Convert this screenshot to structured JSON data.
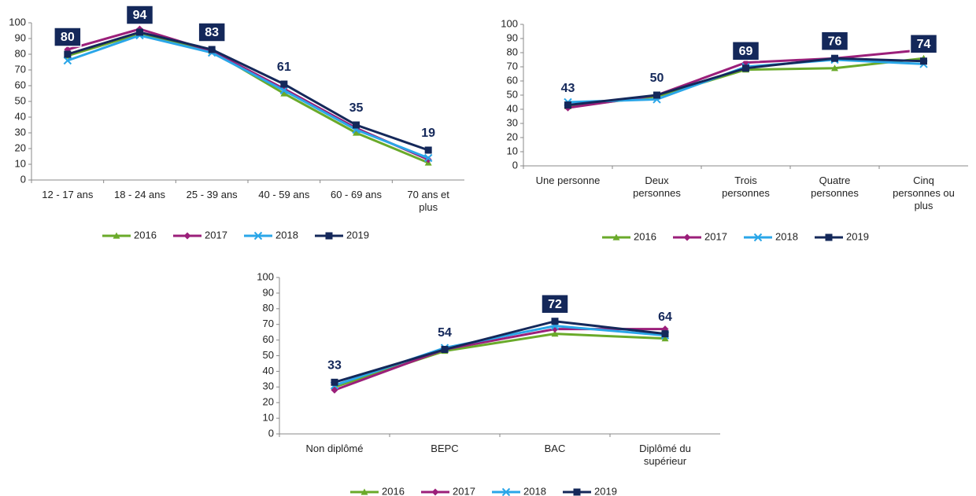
{
  "chart_data": [
    {
      "type": "line",
      "categories": [
        "12 - 17 ans",
        "18 - 24 ans",
        "25 - 39 ans",
        "40 - 59 ans",
        "60 - 69 ans",
        "70 ans et plus"
      ],
      "series": [
        {
          "name": "2016",
          "color": "#6aaa2a",
          "marker": "triangle",
          "values": [
            79,
            93,
            82,
            55,
            30,
            11
          ]
        },
        {
          "name": "2017",
          "color": "#9b1f7a",
          "marker": "diamond",
          "values": [
            83,
            96,
            82,
            58,
            33,
            13
          ]
        },
        {
          "name": "2018",
          "color": "#2aa6e8",
          "marker": "x",
          "values": [
            76,
            92,
            81,
            57,
            32,
            14
          ]
        },
        {
          "name": "2019",
          "color": "#14285a",
          "marker": "square",
          "values": [
            80,
            94,
            83,
            61,
            35,
            19
          ],
          "data_labels": true,
          "labels_boxed": [
            true,
            true,
            true,
            false,
            false,
            false
          ]
        }
      ],
      "ylim": [
        0,
        100
      ],
      "yticks": [
        0,
        10,
        20,
        30,
        40,
        50,
        60,
        70,
        80,
        90,
        100
      ],
      "legend": "bottom"
    },
    {
      "type": "line",
      "categories": [
        "Une personne",
        "Deux personnes",
        "Trois personnes",
        "Quatre personnes",
        "Cinq personnes ou plus"
      ],
      "series": [
        {
          "name": "2016",
          "color": "#6aaa2a",
          "marker": "triangle",
          "values": [
            42,
            49,
            68,
            69,
            76
          ]
        },
        {
          "name": "2017",
          "color": "#9b1f7a",
          "marker": "diamond",
          "values": [
            41,
            50,
            73,
            76,
            82
          ]
        },
        {
          "name": "2018",
          "color": "#2aa6e8",
          "marker": "x",
          "values": [
            45,
            47,
            70,
            75,
            72
          ]
        },
        {
          "name": "2019",
          "color": "#14285a",
          "marker": "square",
          "values": [
            43,
            50,
            69,
            76,
            74
          ],
          "data_labels": true,
          "labels_boxed": [
            false,
            false,
            true,
            true,
            true
          ]
        }
      ],
      "ylim": [
        0,
        100
      ],
      "yticks": [
        0,
        10,
        20,
        30,
        40,
        50,
        60,
        70,
        80,
        90,
        100
      ],
      "legend": "bottom"
    },
    {
      "type": "line",
      "categories": [
        "Non diplômé",
        "BEPC",
        "BAC",
        "Diplômé du supérieur"
      ],
      "series": [
        {
          "name": "2016",
          "color": "#6aaa2a",
          "marker": "triangle",
          "values": [
            30,
            53,
            64,
            61
          ]
        },
        {
          "name": "2017",
          "color": "#9b1f7a",
          "marker": "diamond",
          "values": [
            28,
            54,
            67,
            67
          ]
        },
        {
          "name": "2018",
          "color": "#2aa6e8",
          "marker": "x",
          "values": [
            31,
            55,
            69,
            63
          ]
        },
        {
          "name": "2019",
          "color": "#14285a",
          "marker": "square",
          "values": [
            33,
            54,
            72,
            64
          ],
          "data_labels": true,
          "labels_boxed": [
            false,
            false,
            true,
            false
          ]
        }
      ],
      "ylim": [
        0,
        100
      ],
      "yticks": [
        0,
        10,
        20,
        30,
        40,
        50,
        60,
        70,
        80,
        90,
        100
      ],
      "legend": "bottom"
    }
  ]
}
